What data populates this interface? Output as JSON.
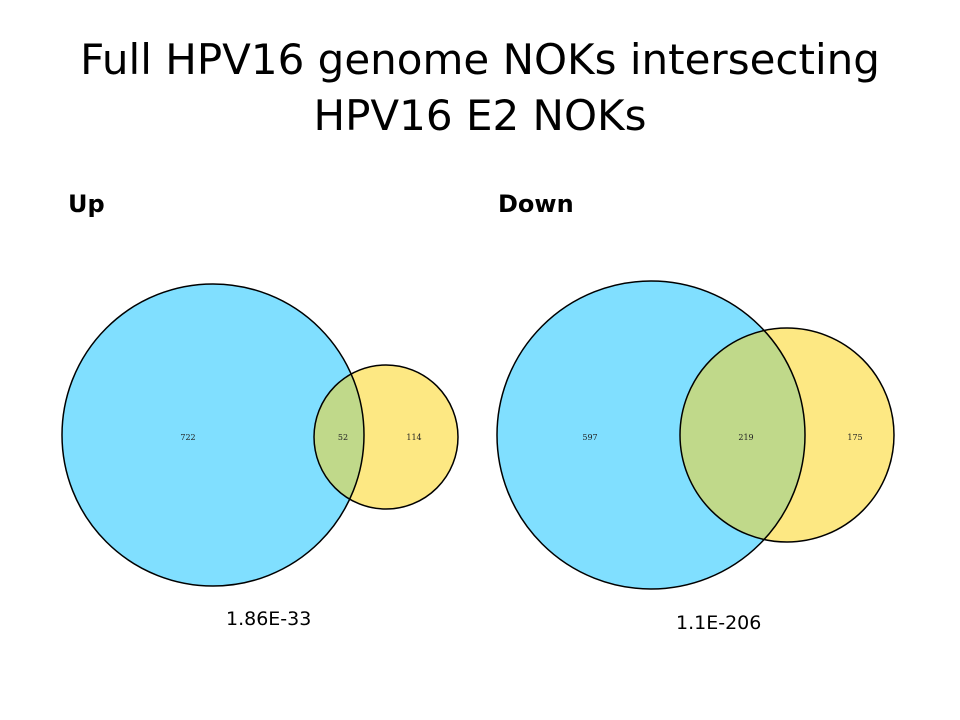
{
  "title": {
    "line1": "Full HPV16 genome NOKs intersecting",
    "line2": "HPV16 E2 NOKs"
  },
  "panels": {
    "up": {
      "label": "Up",
      "left_only": "722",
      "overlap": "52",
      "right_only": "114",
      "pvalue": "1.86E-33"
    },
    "down": {
      "label": "Down",
      "left_only": "597",
      "overlap": "219",
      "right_only": "175",
      "pvalue": "1.1E-206"
    }
  },
  "colors": {
    "set_a": "#80dfff",
    "set_b": "#fde883",
    "overlap": "#c0d98a",
    "outline": "#000000"
  }
}
